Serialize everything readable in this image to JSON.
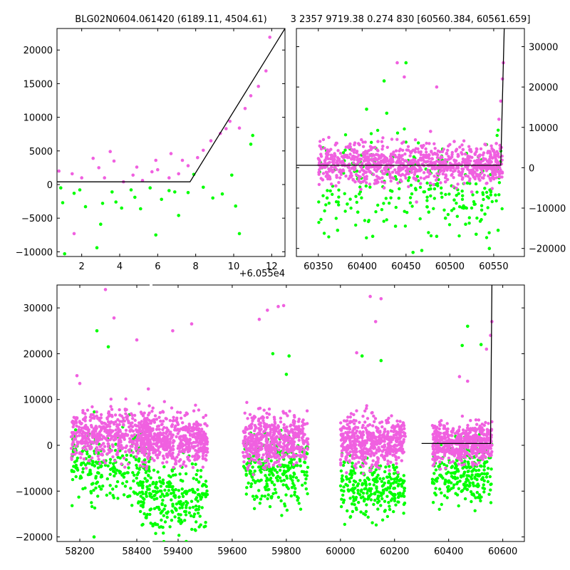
{
  "figure": {
    "title_left": "BLG02N0604.061420 (6189.11, 4504.61)",
    "title_right": "3 2357 9719.38 0.274 830 [60560.384, 60561.659]",
    "colors": {
      "magenta": "#f060e0",
      "green": "#00ff00",
      "model_line": "#000000"
    }
  },
  "chart_data": [
    {
      "panel": "top-left",
      "type": "scatter",
      "title": "",
      "xlabel": "",
      "ylabel": "",
      "x_offset_text": "+6.055e4",
      "xlim": [
        0.7,
        12.7
      ],
      "ylim": [
        -10700,
        23200
      ],
      "xticks": [
        2,
        4,
        6,
        8,
        10,
        12
      ],
      "xtick_labels": [
        "2",
        "4",
        "6",
        "8",
        "10",
        "12"
      ],
      "yticks": [
        -10000,
        -5000,
        0,
        5000,
        10000,
        15000,
        20000
      ],
      "ytick_labels": [
        "−10000",
        "−5000",
        "0",
        "5000",
        "10000",
        "15000",
        "20000"
      ],
      "series": [
        {
          "color": "magenta",
          "x": [
            0.8,
            1.5,
            1.6,
            2.0,
            2.6,
            2.9,
            3.2,
            3.5,
            3.7,
            4.2,
            4.7,
            4.9,
            5.2,
            5.7,
            5.9,
            6.0,
            6.6,
            6.7,
            7.1,
            7.3,
            7.6,
            8.1,
            8.4,
            8.8,
            9.3,
            9.6,
            9.8,
            10.3,
            10.6,
            10.9,
            11.3,
            11.7,
            11.9
          ],
          "y": [
            2000,
            1600,
            -7300,
            1000,
            3900,
            2500,
            1000,
            4900,
            3500,
            400,
            1400,
            2600,
            600,
            1900,
            3600,
            2200,
            1000,
            4600,
            1600,
            3600,
            2800,
            4000,
            5100,
            6500,
            7600,
            8300,
            9400,
            8400,
            11300,
            13200,
            14600,
            16900,
            21900
          ]
        },
        {
          "color": "green",
          "x": [
            0.9,
            1.0,
            1.1,
            1.6,
            1.9,
            2.2,
            2.8,
            3.0,
            3.1,
            3.6,
            3.8,
            4.1,
            4.6,
            4.8,
            5.1,
            5.6,
            5.9,
            6.2,
            6.6,
            6.9,
            7.1,
            7.6,
            7.9,
            8.4,
            8.9,
            9.4,
            9.9,
            10.1,
            10.3,
            10.9,
            11.0
          ],
          "y": [
            -500,
            -2700,
            -10300,
            -1300,
            -800,
            -3300,
            -9400,
            -5900,
            -2800,
            -1100,
            -2600,
            -3500,
            -800,
            -1900,
            -3600,
            -500,
            -7500,
            -2200,
            -900,
            -1100,
            -4600,
            -1200,
            1500,
            -400,
            -2000,
            -1400,
            1400,
            -3200,
            -7300,
            6000,
            7300
          ]
        }
      ],
      "model_line": {
        "x": [
          0.7,
          7.7,
          12.7
        ],
        "y": [
          400,
          400,
          23200
        ]
      }
    },
    {
      "panel": "top-right",
      "type": "scatter",
      "title": "",
      "xlabel": "",
      "ylabel": "",
      "xlim": [
        60325,
        60585
      ],
      "ylim": [
        -22000,
        34500
      ],
      "xticks": [
        60350,
        60400,
        60450,
        60500,
        60550
      ],
      "xtick_labels": [
        "60350",
        "60400",
        "60450",
        "60500",
        "60550"
      ],
      "yticks": [
        -20000,
        -10000,
        0,
        10000,
        20000,
        30000
      ],
      "ytick_labels": [
        "−20000",
        "−10000",
        "0",
        "10000",
        "20000",
        "30000"
      ],
      "y_axis_side": "right",
      "cloud": {
        "x_range": [
          60350,
          60560
        ],
        "magenta_y_range": [
          -4000,
          6000
        ],
        "green_y_range": [
          -16000,
          8000
        ]
      },
      "series": [
        {
          "color": "magenta",
          "x": [
            60355,
            60362,
            60370,
            60378,
            60385,
            60392,
            60400,
            60410,
            60418,
            60425,
            60432,
            60440,
            60448,
            60455,
            60462,
            60470,
            60478,
            60485,
            60495,
            60505,
            60515,
            60525,
            60533,
            60540,
            60548,
            60553,
            60556,
            60558,
            60560,
            60561
          ],
          "y": [
            -3000,
            7500,
            -4500,
            1500,
            5000,
            -3500,
            -500,
            4500,
            6500,
            -5000,
            2000,
            26000,
            22500,
            1000,
            -8500,
            5500,
            9000,
            20000,
            -3500,
            6500,
            4500,
            -6000,
            2000,
            5800,
            -2500,
            6000,
            12000,
            16500,
            22000,
            26000
          ]
        },
        {
          "color": "green",
          "x": [
            60360,
            60372,
            60383,
            60395,
            60405,
            60412,
            60425,
            60428,
            60438,
            60450,
            60458,
            60468,
            60476,
            60485,
            60495,
            60505,
            60518,
            60530,
            60540,
            60545,
            60555
          ],
          "y": [
            -7500,
            -15500,
            -9000,
            -11000,
            14500,
            -17000,
            21500,
            13500,
            -14500,
            26000,
            -21000,
            -20500,
            -11000,
            -17000,
            -12500,
            -8000,
            -14000,
            -16500,
            -11500,
            -20000,
            -15500
          ]
        }
      ],
      "model_line": {
        "x": [
          60325,
          60558,
          60562
        ],
        "y": [
          600,
          600,
          34500
        ]
      }
    },
    {
      "panel": "bottom",
      "type": "scatter",
      "title": "",
      "xlabel": "",
      "ylabel": "",
      "xlim": [
        58120,
        60680
      ],
      "ylim": [
        -21000,
        35000
      ],
      "xticks": [
        58200,
        58400,
        59400,
        59600,
        59800,
        60000,
        60200,
        60400,
        60600
      ],
      "xtick_labels": [
        "58200",
        "58400",
        "59400",
        "59600",
        "59800",
        "60000",
        "60200",
        "60400",
        "60600"
      ],
      "yticks": [
        -20000,
        -10000,
        0,
        10000,
        20000,
        30000
      ],
      "ytick_labels": [
        "−20000",
        "−10000",
        "0",
        "10000",
        "20000",
        "30000"
      ],
      "axis_break": {
        "left_panel_xlim": [
          58120,
          58450
        ],
        "right_panel_xlim": [
          59300,
          60680
        ]
      },
      "seasons": [
        {
          "x_range": [
            58170,
            58450
          ],
          "magenta_y_range": [
            -3500,
            8000
          ],
          "green_y_range": [
            -12000,
            4000
          ]
        },
        {
          "x_range": [
            59260,
            59510
          ],
          "magenta_y_range": [
            -4500,
            7000
          ],
          "green_y_range": [
            -19000,
            -4000
          ]
        },
        {
          "x_range": [
            59640,
            59880
          ],
          "magenta_y_range": [
            -4500,
            7000
          ],
          "green_y_range": [
            -13000,
            3000
          ]
        },
        {
          "x_range": [
            60000,
            60240
          ],
          "magenta_y_range": [
            -5000,
            6500
          ],
          "green_y_range": [
            -16000,
            -3000
          ]
        },
        {
          "x_range": [
            60340,
            60560
          ],
          "magenta_y_range": [
            -4000,
            5000
          ],
          "green_y_range": [
            -13000,
            2000
          ]
        }
      ],
      "series": [
        {
          "color": "magenta",
          "x": [
            58190,
            58200,
            58290,
            58320,
            58400,
            59290,
            59380,
            59450,
            59700,
            59730,
            59770,
            59790,
            60060,
            60110,
            60130,
            60150,
            60440,
            60470,
            60540,
            60555,
            60560
          ],
          "y": [
            15200,
            13500,
            34000,
            27800,
            23000,
            12300,
            25000,
            26500,
            27500,
            29500,
            30300,
            30500,
            20200,
            32500,
            27000,
            32000,
            15000,
            14000,
            21000,
            24000,
            27000
          ]
        },
        {
          "color": "green",
          "x": [
            58260,
            58300,
            58250,
            59430,
            59810,
            60080,
            60150,
            60470,
            60520,
            60450,
            59750,
            59800
          ],
          "y": [
            25000,
            21500,
            -20000,
            -21000,
            19500,
            19500,
            18500,
            26000,
            22000,
            21800,
            20000,
            15500
          ]
        }
      ],
      "model_line": {
        "x": [
          60300,
          60555,
          60560
        ],
        "y": [
          400,
          400,
          35000
        ]
      }
    }
  ]
}
